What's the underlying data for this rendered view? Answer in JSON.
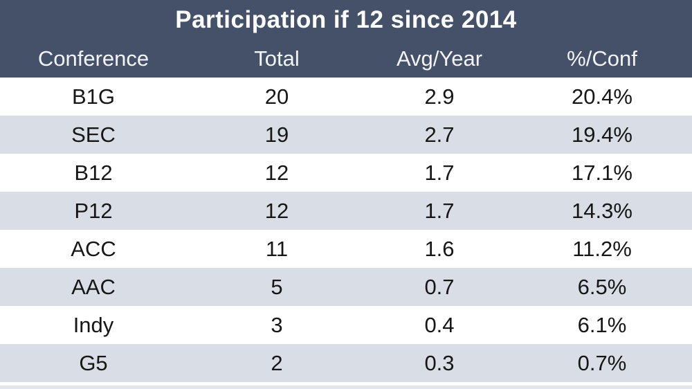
{
  "title": "Participation if 12 since 2014",
  "colors": {
    "header_background": "#445168",
    "header_text": "#ffffff",
    "row_alt_background": "#d9dde5",
    "row_background": "#ffffff",
    "row_text": "#161616"
  },
  "chart_data": {
    "type": "table",
    "title": "Participation if 12 since 2014",
    "columns": [
      "Conference",
      "Total",
      "Avg/Year",
      "%/Conf"
    ],
    "rows": [
      [
        "B1G",
        "20",
        "2.9",
        "20.4%"
      ],
      [
        "SEC",
        "19",
        "2.7",
        "19.4%"
      ],
      [
        "B12",
        "12",
        "1.7",
        "17.1%"
      ],
      [
        "P12",
        "12",
        "1.7",
        "14.3%"
      ],
      [
        "ACC",
        "11",
        "1.6",
        "11.2%"
      ],
      [
        "AAC",
        "5",
        "0.7",
        "6.5%"
      ],
      [
        "Indy",
        "3",
        "0.4",
        "6.1%"
      ],
      [
        "G5",
        "2",
        "0.3",
        "0.7%"
      ]
    ]
  }
}
